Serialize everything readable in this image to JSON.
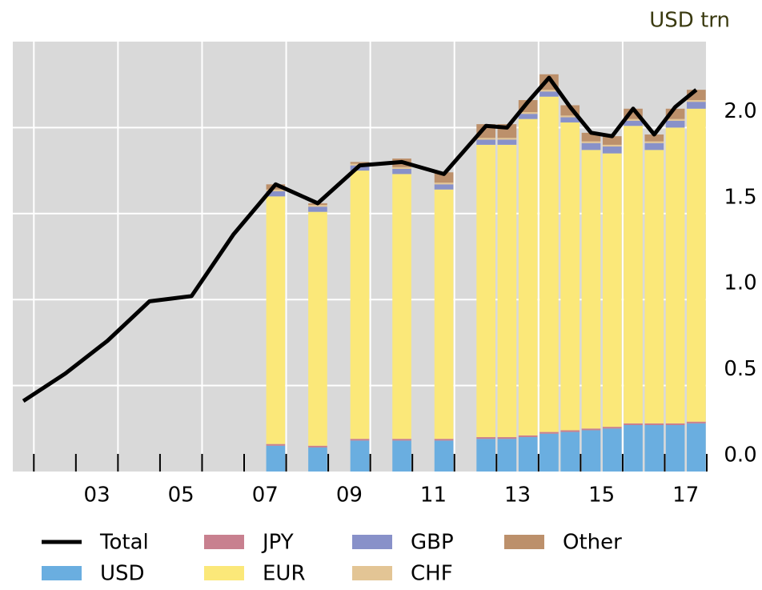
{
  "chart_data": {
    "type": "bar",
    "unit_label": "USD trn",
    "x": [
      2001.75,
      2002.75,
      2003.75,
      2004.75,
      2005.75,
      2006.75,
      2007.75,
      2008.75,
      2009.75,
      2010.75,
      2011.75,
      2012.75,
      2013.25,
      2013.75,
      2014.25,
      2014.75,
      2015.25,
      2015.75,
      2016.25,
      2016.75,
      2017.25,
      2017.75
    ],
    "series": [
      {
        "name": "Total",
        "type": "line",
        "color": "#000000",
        "values": [
          0.41,
          0.57,
          0.76,
          0.99,
          1.02,
          1.38,
          1.67,
          1.56,
          1.78,
          1.8,
          1.73,
          2.01,
          2.0,
          2.15,
          2.29,
          2.12,
          1.97,
          1.95,
          2.11,
          1.96,
          2.12,
          2.22
        ]
      },
      {
        "name": "USD",
        "color": "#6aaee0",
        "values": [
          null,
          null,
          null,
          null,
          null,
          null,
          0.15,
          0.14,
          0.18,
          0.18,
          0.18,
          0.19,
          0.19,
          0.2,
          0.22,
          0.23,
          0.24,
          0.25,
          0.27,
          0.27,
          0.27,
          0.28
        ]
      },
      {
        "name": "JPY",
        "color": "#c8808f",
        "values": [
          null,
          null,
          null,
          null,
          null,
          null,
          0.01,
          0.01,
          0.01,
          0.01,
          0.01,
          0.01,
          0.01,
          0.01,
          0.01,
          0.01,
          0.01,
          0.01,
          0.01,
          0.01,
          0.01,
          0.01
        ]
      },
      {
        "name": "EUR",
        "color": "#fbe879",
        "values": [
          null,
          null,
          null,
          null,
          null,
          null,
          1.44,
          1.36,
          1.56,
          1.54,
          1.45,
          1.7,
          1.7,
          1.84,
          1.95,
          1.79,
          1.62,
          1.59,
          1.73,
          1.59,
          1.72,
          1.82
        ]
      },
      {
        "name": "GBP",
        "color": "#8891c9",
        "values": [
          null,
          null,
          null,
          null,
          null,
          null,
          0.03,
          0.03,
          0.03,
          0.03,
          0.03,
          0.03,
          0.03,
          0.03,
          0.03,
          0.03,
          0.04,
          0.04,
          0.03,
          0.04,
          0.04,
          0.04
        ]
      },
      {
        "name": "CHF",
        "color": "#e3c595",
        "values": [
          null,
          null,
          null,
          null,
          null,
          null,
          0.01,
          0.01,
          0.01,
          0.01,
          0.01,
          0.01,
          0.01,
          0.01,
          0.01,
          0.01,
          0.01,
          0.01,
          0.01,
          0.01,
          0.01,
          0.01
        ]
      },
      {
        "name": "Other",
        "color": "#bc906b",
        "values": [
          null,
          null,
          null,
          null,
          null,
          null,
          0.03,
          0.01,
          0.01,
          0.05,
          0.06,
          0.08,
          0.08,
          0.07,
          0.09,
          0.06,
          0.05,
          0.05,
          0.06,
          0.04,
          0.06,
          0.06
        ]
      }
    ],
    "xlim": [
      2001.5,
      2018
    ],
    "xticks": [
      {
        "value": 2003.5,
        "label": "03"
      },
      {
        "value": 2005.5,
        "label": "05"
      },
      {
        "value": 2007.5,
        "label": "07"
      },
      {
        "value": 2009.5,
        "label": "09"
      },
      {
        "value": 2011.5,
        "label": "11"
      },
      {
        "value": 2013.5,
        "label": "13"
      },
      {
        "value": 2015.5,
        "label": "15"
      },
      {
        "value": 2017.5,
        "label": "17"
      }
    ],
    "xtick_marks": [
      2002,
      2003,
      2004,
      2005,
      2006,
      2007,
      2008,
      2009,
      2010,
      2011,
      2012,
      2013,
      2014,
      2015,
      2016,
      2017,
      2018
    ],
    "ylim": [
      0,
      2.5
    ],
    "yticks": [
      {
        "value": 0,
        "label": "0.0"
      },
      0.5,
      {
        "value": 1,
        "label": "1.0"
      },
      1.5,
      {
        "value": 2,
        "label": "2.0"
      }
    ],
    "grid": true,
    "background": "#d9d9d9"
  }
}
